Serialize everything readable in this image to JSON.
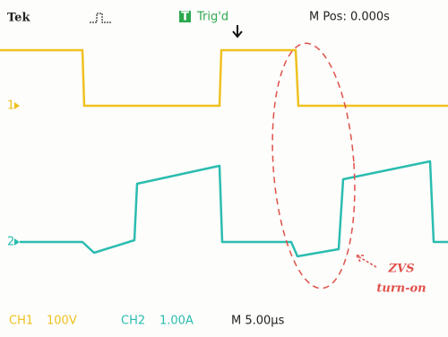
{
  "header": {
    "brand": "Tek",
    "trigger_icon": "T",
    "trigger_status": "Trig'd",
    "position": "M Pos: 0.000s"
  },
  "markers": {
    "ch1": "1",
    "ch2": "2"
  },
  "annotation": {
    "line1": "ZVS",
    "line2": "turn-on"
  },
  "footer": {
    "ch1_label": "CH1",
    "ch1_scale": "100V",
    "ch2_label": "CH2",
    "ch2_scale": "1.00A",
    "timebase": "M 5.00μs"
  }
}
